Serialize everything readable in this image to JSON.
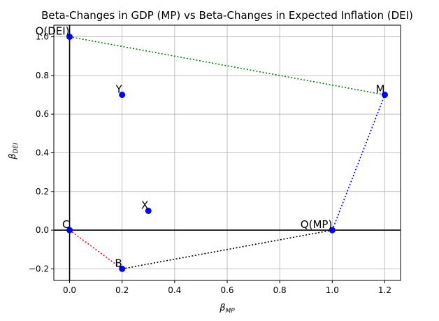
{
  "chart_data": {
    "type": "scatter",
    "title": "Beta-Changes in GDP (MP) vs Beta-Changes in Expected Inflation (DEI)",
    "xlabel_main": "β",
    "xlabel_sub": "MP",
    "ylabel_main": "β",
    "ylabel_sub": "DEI",
    "xlim": [
      -0.06,
      1.26
    ],
    "ylim": [
      -0.26,
      1.06
    ],
    "x_ticks": [
      {
        "value": 0.0,
        "label": "0.0"
      },
      {
        "value": 0.2,
        "label": "0.2"
      },
      {
        "value": 0.4,
        "label": "0.4"
      },
      {
        "value": 0.6,
        "label": "0.6"
      },
      {
        "value": 0.8,
        "label": "0.8"
      },
      {
        "value": 1.0,
        "label": "1.0"
      },
      {
        "value": 1.2,
        "label": "1.2"
      }
    ],
    "y_ticks": [
      {
        "value": -0.2,
        "label": "−0.2"
      },
      {
        "value": 0.0,
        "label": "0.0"
      },
      {
        "value": 0.2,
        "label": "0.2"
      },
      {
        "value": 0.4,
        "label": "0.4"
      },
      {
        "value": 0.6,
        "label": "0.6"
      },
      {
        "value": 0.8,
        "label": "0.8"
      },
      {
        "value": 1.0,
        "label": "1.0"
      }
    ],
    "grid": true,
    "points": [
      {
        "label": "Q(DEI)",
        "x": 0.0,
        "y": 1.0
      },
      {
        "label": "Y",
        "x": 0.2,
        "y": 0.7
      },
      {
        "label": "M",
        "x": 1.2,
        "y": 0.7
      },
      {
        "label": "X",
        "x": 0.3,
        "y": 0.1
      },
      {
        "label": "C",
        "x": 0.0,
        "y": 0.0
      },
      {
        "label": "Q(MP)",
        "x": 1.0,
        "y": 0.0
      },
      {
        "label": "B",
        "x": 0.2,
        "y": -0.2
      }
    ],
    "point_color": "#0000ff",
    "segments": [
      {
        "from": [
          0.0,
          1.0
        ],
        "to": [
          1.2,
          0.7
        ],
        "color": "#008000"
      },
      {
        "from": [
          1.0,
          0.0
        ],
        "to": [
          1.2,
          0.7
        ],
        "color": "#0000ff"
      },
      {
        "from": [
          0.0,
          0.0
        ],
        "to": [
          0.2,
          -0.2
        ],
        "color": "#ff0000"
      },
      {
        "from": [
          0.2,
          -0.2
        ],
        "to": [
          1.0,
          0.0
        ],
        "color": "#000000"
      }
    ],
    "axis_lines": {
      "x_zero": true,
      "y_zero": true
    }
  }
}
